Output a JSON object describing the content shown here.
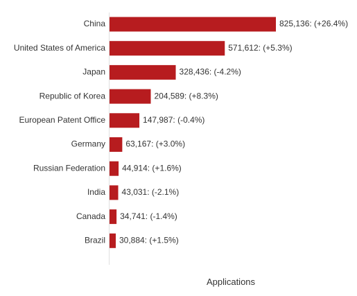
{
  "chart_data": {
    "type": "bar",
    "orientation": "horizontal",
    "categories": [
      "China",
      "United States of America",
      "Japan",
      "Republic of Korea",
      "European Patent Office",
      "Germany",
      "Russian Federation",
      "India",
      "Canada",
      "Brazil"
    ],
    "values": [
      825136,
      571612,
      328436,
      204589,
      147987,
      63167,
      44914,
      43031,
      34741,
      30884
    ],
    "data_labels": [
      "825,136: (+26.4%)",
      "571,612: (+5.3%)",
      "328,436: (-4.2%)",
      "204,589: (+8.3%)",
      "147,987: (-0.4%)",
      "63,167: (+3.0%)",
      "44,914: (+1.6%)",
      "43,031: (-2.1%)",
      "34,741: (-1.4%)",
      "30,884: (+1.5%)"
    ],
    "xlabel": "Applications",
    "ylabel": "",
    "xlim": [
      0,
      825136
    ],
    "grid": false,
    "legend": "none",
    "bar_color": "#b71c1f",
    "axis_color": "#e0e0e0"
  }
}
